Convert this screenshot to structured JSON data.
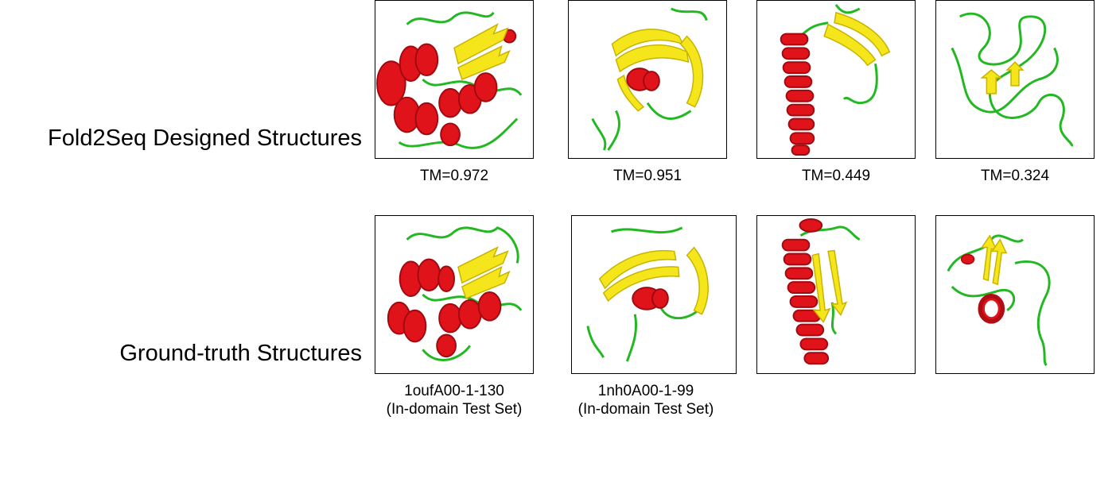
{
  "rows": {
    "designed": {
      "label": "Fold2Seq Designed Structures"
    },
    "ground_truth": {
      "label": "Ground-truth Structures"
    }
  },
  "tm_scores": [
    "TM=0.972",
    "TM=0.951",
    "TM=0.449",
    "TM=0.324"
  ],
  "ground_truth_captions": [
    {
      "id": "1oufA00-1-130",
      "set": "(In-domain Test Set)"
    },
    {
      "id": "1nh0A00-1-99",
      "set": "(In-domain Test Set)"
    }
  ],
  "colors": {
    "helix": "#e0121a",
    "helix_dark": "#a00a10",
    "strand": "#f5e51b",
    "strand_dark": "#c8b400",
    "coil": "#22b822",
    "border": "#000000"
  }
}
